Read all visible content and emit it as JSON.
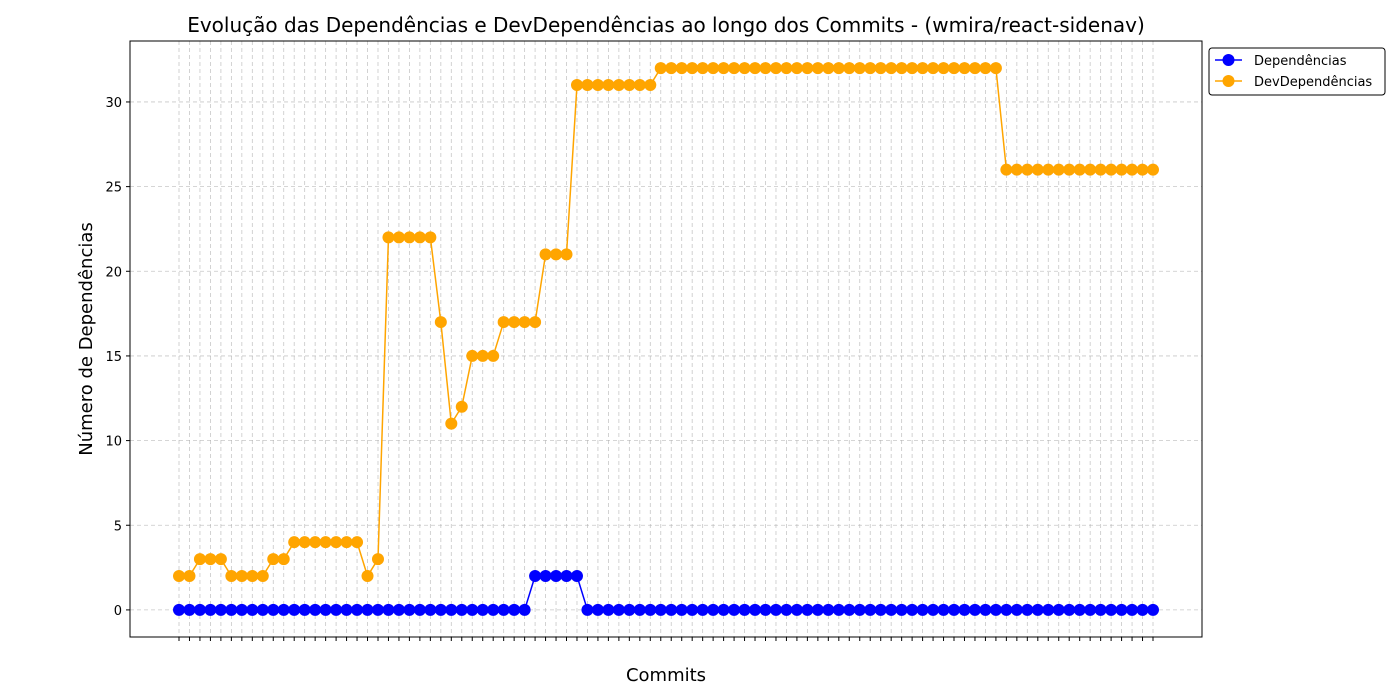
{
  "chart_data": {
    "type": "line",
    "title": "Evolução das Dependências e DevDependências ao longo dos Commits - (wmira/react-sidenav)",
    "xlabel": "Commits",
    "ylabel": "Número de Dependências",
    "ylim": [
      -1.6,
      33.6
    ],
    "yticks": [
      0,
      5,
      10,
      15,
      20,
      25,
      30
    ],
    "grid": true,
    "grid_style": "dashed",
    "legend_position": "top-right-outside",
    "x_count": 94,
    "series": [
      {
        "name": "Dependências",
        "color": "#0000ff",
        "marker": "circle",
        "values": [
          0,
          0,
          0,
          0,
          0,
          0,
          0,
          0,
          0,
          0,
          0,
          0,
          0,
          0,
          0,
          0,
          0,
          0,
          0,
          0,
          0,
          0,
          0,
          0,
          0,
          0,
          0,
          0,
          0,
          0,
          0,
          0,
          0,
          0,
          2,
          2,
          2,
          2,
          2,
          0,
          0,
          0,
          0,
          0,
          0,
          0,
          0,
          0,
          0,
          0,
          0,
          0,
          0,
          0,
          0,
          0,
          0,
          0,
          0,
          0,
          0,
          0,
          0,
          0,
          0,
          0,
          0,
          0,
          0,
          0,
          0,
          0,
          0,
          0,
          0,
          0,
          0,
          0,
          0,
          0,
          0,
          0,
          0,
          0,
          0,
          0,
          0,
          0,
          0,
          0,
          0,
          0,
          0,
          0
        ]
      },
      {
        "name": "DevDependências",
        "color": "#ffa500",
        "marker": "circle",
        "values": [
          2,
          2,
          3,
          3,
          3,
          2,
          2,
          2,
          2,
          3,
          3,
          4,
          4,
          4,
          4,
          4,
          4,
          4,
          2,
          3,
          22,
          22,
          22,
          22,
          22,
          17,
          11,
          12,
          15,
          15,
          15,
          17,
          17,
          17,
          17,
          21,
          21,
          21,
          31,
          31,
          31,
          31,
          31,
          31,
          31,
          31,
          32,
          32,
          32,
          32,
          32,
          32,
          32,
          32,
          32,
          32,
          32,
          32,
          32,
          32,
          32,
          32,
          32,
          32,
          32,
          32,
          32,
          32,
          32,
          32,
          32,
          32,
          32,
          32,
          32,
          32,
          32,
          32,
          32,
          26,
          26,
          26,
          26,
          26,
          26,
          26,
          26,
          26,
          26,
          26,
          26,
          26,
          26,
          26
        ]
      }
    ]
  }
}
